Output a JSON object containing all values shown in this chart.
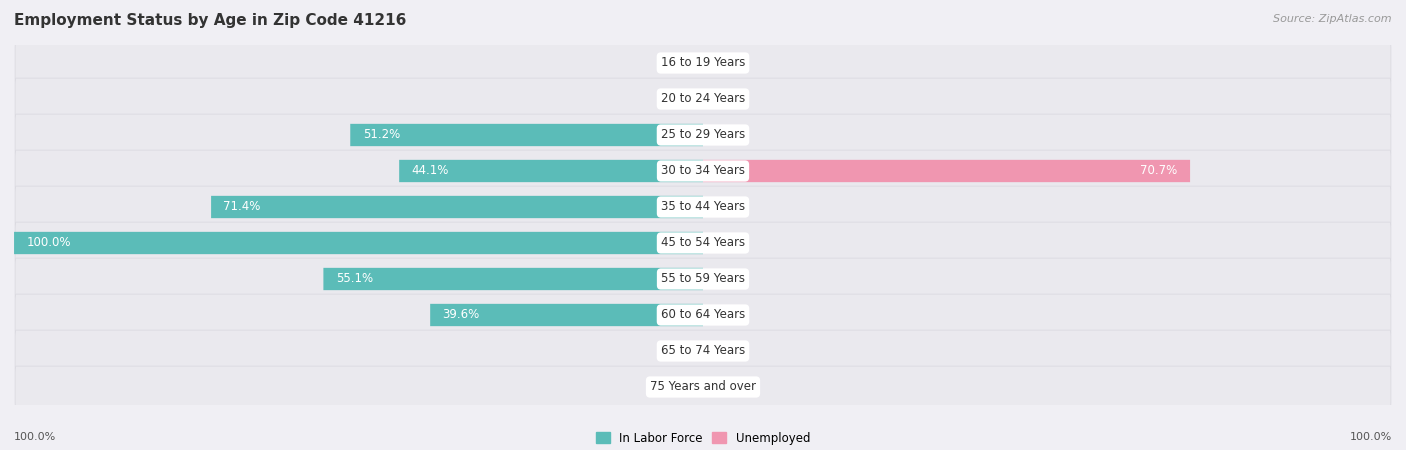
{
  "title": "Employment Status by Age in Zip Code 41216",
  "source": "Source: ZipAtlas.com",
  "categories": [
    "16 to 19 Years",
    "20 to 24 Years",
    "25 to 29 Years",
    "30 to 34 Years",
    "35 to 44 Years",
    "45 to 54 Years",
    "55 to 59 Years",
    "60 to 64 Years",
    "65 to 74 Years",
    "75 Years and over"
  ],
  "labor_force": [
    0.0,
    0.0,
    51.2,
    44.1,
    71.4,
    100.0,
    55.1,
    39.6,
    0.0,
    0.0
  ],
  "unemployed": [
    0.0,
    0.0,
    0.0,
    70.7,
    0.0,
    0.0,
    0.0,
    0.0,
    0.0,
    0.0
  ],
  "labor_force_color": "#5bbcb8",
  "unemployed_color": "#f096b0",
  "background_color": "#f0eff4",
  "bar_bg_color": "#e4e3e9",
  "row_bg_color": "#eae9ee",
  "label_bg_color": "#ffffff",
  "title_fontsize": 11,
  "source_fontsize": 8,
  "label_fontsize": 8.5,
  "cat_label_fontsize": 8.5,
  "axis_label_fontsize": 8,
  "xlim": 100.0,
  "legend_labels": [
    "In Labor Force",
    "Unemployed"
  ]
}
